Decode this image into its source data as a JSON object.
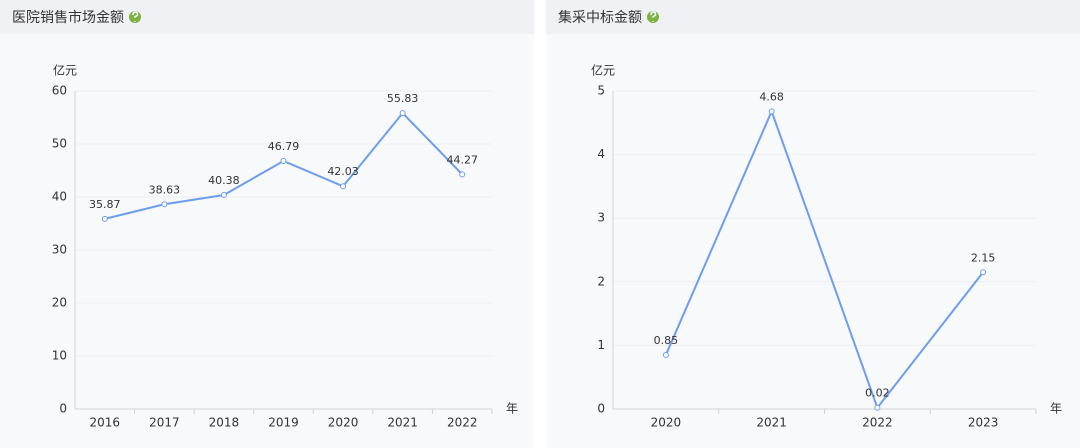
{
  "chart_data": [
    {
      "type": "line",
      "title": "医院销售市场金额",
      "y_label": "亿元",
      "x_label": "年",
      "categories": [
        "2016",
        "2017",
        "2018",
        "2019",
        "2020",
        "2021",
        "2022"
      ],
      "series": [
        {
          "name": "医院销售市场金额",
          "color": "#6d9eeb",
          "values": [
            35.87,
            38.63,
            40.38,
            46.79,
            42.03,
            55.83,
            44.27
          ]
        }
      ],
      "ylim": [
        0,
        60
      ],
      "yticks": [
        0,
        10,
        20,
        30,
        40,
        50,
        60
      ],
      "grid": true
    },
    {
      "type": "line",
      "title": "集采中标金额",
      "y_label": "亿元",
      "x_label": "年",
      "categories": [
        "2020",
        "2021",
        "2022",
        "2023"
      ],
      "series": [
        {
          "name": "集采中标金额",
          "color": "#6d9eeb",
          "values": [
            0.85,
            4.68,
            0.02,
            2.15
          ]
        }
      ],
      "ylim": [
        0,
        5
      ],
      "yticks": [
        0,
        1,
        2,
        3,
        4,
        5
      ],
      "grid": true
    }
  ]
}
